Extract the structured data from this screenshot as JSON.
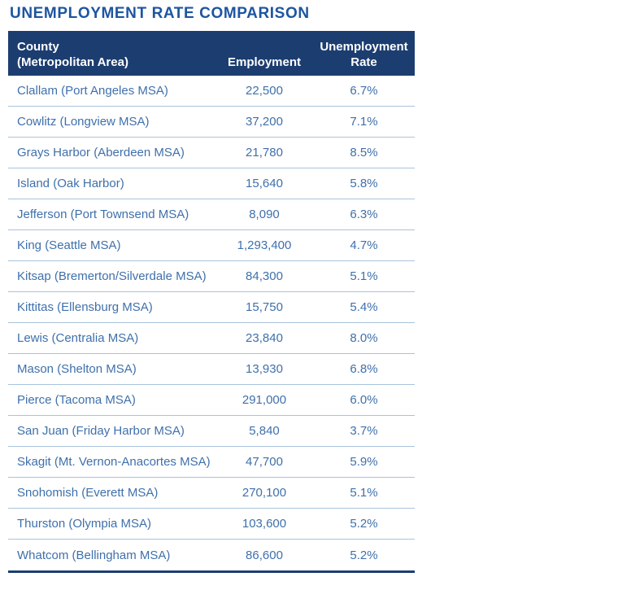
{
  "page": {
    "title": "UNEMPLOYMENT RATE COMPARISON"
  },
  "header": {
    "col1_line1": "County",
    "col1_line2": "(Metropolitan Area)",
    "col2": "Employment",
    "col3_line1": "Unemployment",
    "col3_line2": "Rate"
  },
  "colors": {
    "title_text": "#1e55a0",
    "header_bg": "#1c3d70",
    "header_text": "#ffffff",
    "row_text": "#3f70ab",
    "row_divider": "#a9c3dc",
    "bottom_border": "#1c3d70"
  },
  "chart_data": {
    "type": "table",
    "title": "UNEMPLOYMENT RATE COMPARISON",
    "columns": [
      "County (Metropolitan Area)",
      "Employment",
      "Unemployment Rate"
    ],
    "rows": [
      {
        "county": "Clallam (Port Angeles MSA)",
        "employment": "22,500",
        "rate": "6.7%"
      },
      {
        "county": "Cowlitz (Longview MSA)",
        "employment": "37,200",
        "rate": "7.1%"
      },
      {
        "county": "Grays Harbor (Aberdeen MSA)",
        "employment": "21,780",
        "rate": "8.5%"
      },
      {
        "county": "Island (Oak Harbor)",
        "employment": "15,640",
        "rate": "5.8%"
      },
      {
        "county": "Jefferson (Port Townsend MSA)",
        "employment": "8,090",
        "rate": "6.3%"
      },
      {
        "county": "King (Seattle MSA)",
        "employment": "1,293,400",
        "rate": "4.7%"
      },
      {
        "county": "Kitsap (Bremerton/Silverdale MSA)",
        "employment": "84,300",
        "rate": "5.1%"
      },
      {
        "county": "Kittitas (Ellensburg MSA)",
        "employment": "15,750",
        "rate": "5.4%"
      },
      {
        "county": "Lewis (Centralia MSA)",
        "employment": "23,840",
        "rate": "8.0%"
      },
      {
        "county": "Mason (Shelton MSA)",
        "employment": "13,930",
        "rate": "6.8%"
      },
      {
        "county": "Pierce (Tacoma MSA)",
        "employment": "291,000",
        "rate": "6.0%"
      },
      {
        "county": "San Juan (Friday Harbor MSA)",
        "employment": "5,840",
        "rate": "3.7%"
      },
      {
        "county": "Skagit (Mt. Vernon-Anacortes MSA)",
        "employment": "47,700",
        "rate": "5.9%"
      },
      {
        "county": "Snohomish (Everett MSA)",
        "employment": "270,100",
        "rate": "5.1%"
      },
      {
        "county": "Thurston (Olympia MSA)",
        "employment": "103,600",
        "rate": "5.2%"
      },
      {
        "county": "Whatcom (Bellingham MSA)",
        "employment": "86,600",
        "rate": "5.2%"
      }
    ]
  }
}
